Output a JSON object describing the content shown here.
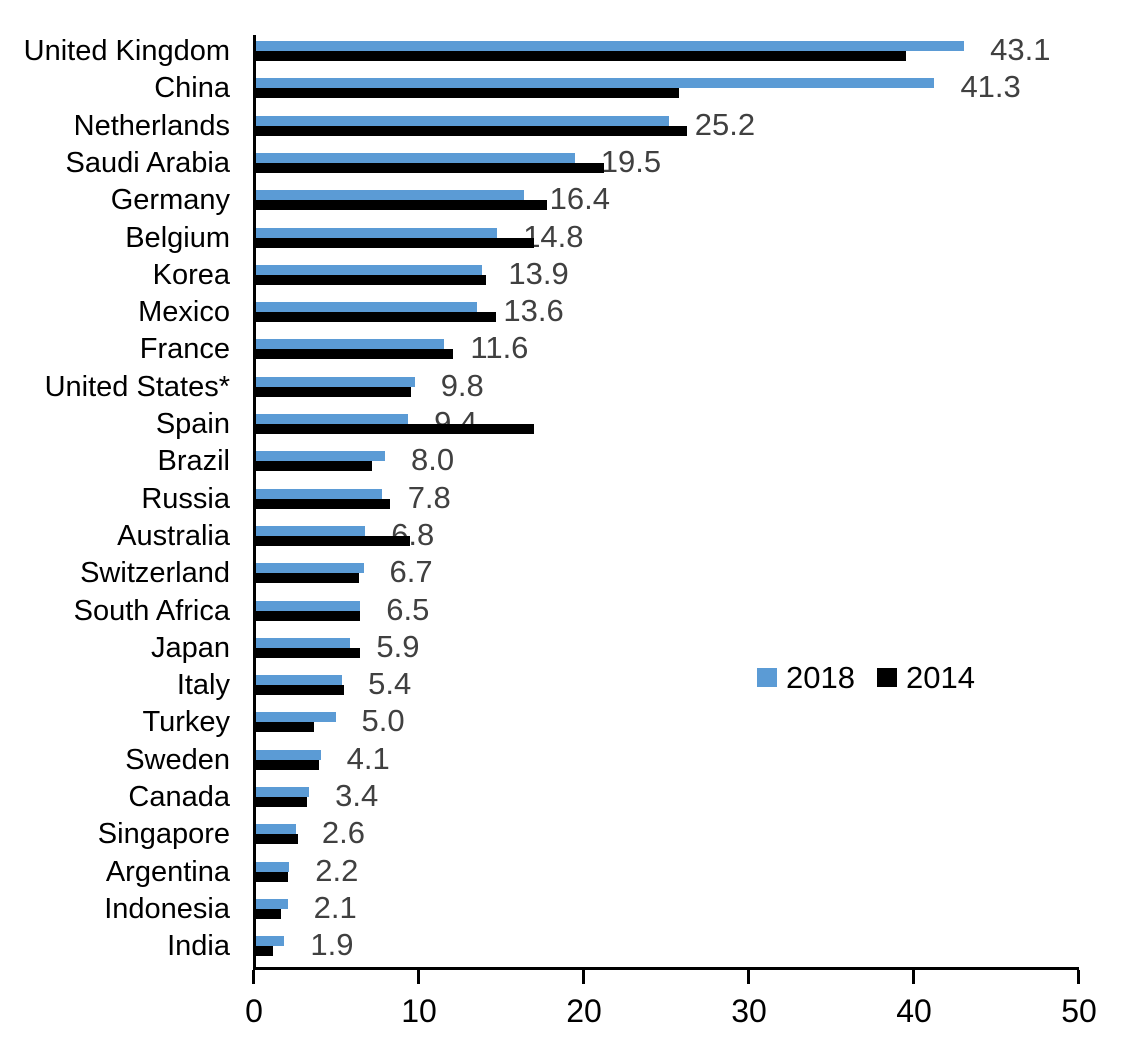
{
  "chart_data": {
    "type": "bar",
    "orientation": "horizontal",
    "title": "",
    "xlabel": "",
    "ylabel": "",
    "xlim": [
      0,
      50
    ],
    "xticks": [
      0,
      10,
      20,
      30,
      40,
      50
    ],
    "grid": false,
    "legend_position": "middle-right",
    "value_labels_shown_for_series": "2018",
    "categories": [
      "United Kingdom",
      "China",
      "Netherlands",
      "Saudi Arabia",
      "Germany",
      "Belgium",
      "Korea",
      "Mexico",
      "France",
      "United States*",
      "Spain",
      "Brazil",
      "Russia",
      "Australia",
      "Switzerland",
      "South Africa",
      "Japan",
      "Italy",
      "Turkey",
      "Sweden",
      "Canada",
      "Singapore",
      "Argentina",
      "Indonesia",
      "India"
    ],
    "series": [
      {
        "name": "2018",
        "color": "#5B9BD5",
        "values": [
          43.1,
          41.3,
          25.2,
          19.5,
          16.4,
          14.8,
          13.9,
          13.6,
          11.6,
          9.8,
          9.4,
          8.0,
          7.8,
          6.8,
          6.7,
          6.5,
          5.9,
          5.4,
          5.0,
          4.1,
          3.4,
          2.6,
          2.2,
          2.1,
          1.9
        ]
      },
      {
        "name": "2014",
        "color": "#000000",
        "values": [
          39.6,
          25.8,
          26.3,
          21.3,
          17.8,
          17.0,
          14.1,
          14.7,
          12.1,
          9.6,
          17.0,
          7.2,
          8.3,
          9.5,
          6.4,
          6.5,
          6.5,
          5.5,
          3.7,
          4.0,
          3.3,
          2.7,
          2.1,
          1.7,
          1.2
        ]
      }
    ],
    "value_labels": [
      "43.1",
      "41.3",
      "25.2",
      "19.5",
      "16.4",
      "14.8",
      "13.9",
      "13.6",
      "11.6",
      "9.8",
      "9.4",
      "8.0",
      "7.8",
      "6.8",
      "6.7",
      "6.5",
      "5.9",
      "5.4",
      "5.0",
      "4.1",
      "3.4",
      "2.6",
      "2.2",
      "2.1",
      "1.9"
    ],
    "colors": {
      "value_label": "#404040",
      "axis": "#000000",
      "category_label": "#000000"
    }
  }
}
